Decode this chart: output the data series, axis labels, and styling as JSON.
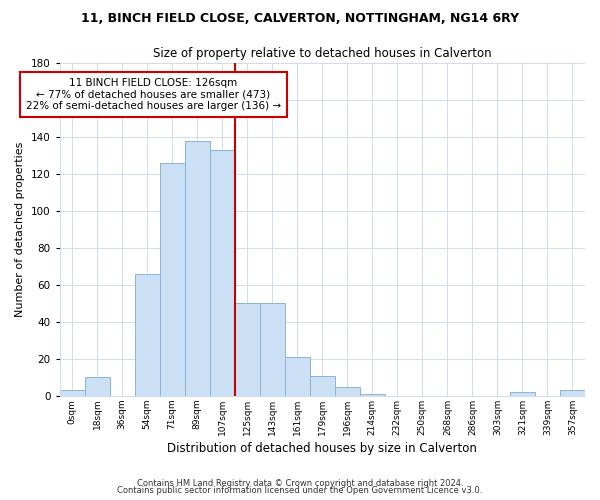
{
  "title": "11, BINCH FIELD CLOSE, CALVERTON, NOTTINGHAM, NG14 6RY",
  "subtitle": "Size of property relative to detached houses in Calverton",
  "xlabel": "Distribution of detached houses by size in Calverton",
  "ylabel": "Number of detached properties",
  "bar_labels": [
    "0sqm",
    "18sqm",
    "36sqm",
    "54sqm",
    "71sqm",
    "89sqm",
    "107sqm",
    "125sqm",
    "143sqm",
    "161sqm",
    "179sqm",
    "196sqm",
    "214sqm",
    "232sqm",
    "250sqm",
    "268sqm",
    "286sqm",
    "303sqm",
    "321sqm",
    "339sqm",
    "357sqm"
  ],
  "bar_heights": [
    3,
    10,
    0,
    66,
    126,
    138,
    133,
    50,
    50,
    21,
    11,
    5,
    1,
    0,
    0,
    0,
    0,
    0,
    2,
    0,
    3
  ],
  "bar_color": "#cce0f5",
  "bar_edge_color": "#8ab4d8",
  "reference_line_color": "#cc0000",
  "annotation_title": "11 BINCH FIELD CLOSE: 126sqm",
  "annotation_line1": "← 77% of detached houses are smaller (473)",
  "annotation_line2": "22% of semi-detached houses are larger (136) →",
  "annotation_box_color": "#ffffff",
  "annotation_box_edge": "#cc0000",
  "ylim": [
    0,
    180
  ],
  "yticks": [
    0,
    20,
    40,
    60,
    80,
    100,
    120,
    140,
    160,
    180
  ],
  "footnote1": "Contains HM Land Registry data © Crown copyright and database right 2024.",
  "footnote2": "Contains public sector information licensed under the Open Government Licence v3.0.",
  "background_color": "#ffffff",
  "grid_color": "#d0dcee"
}
